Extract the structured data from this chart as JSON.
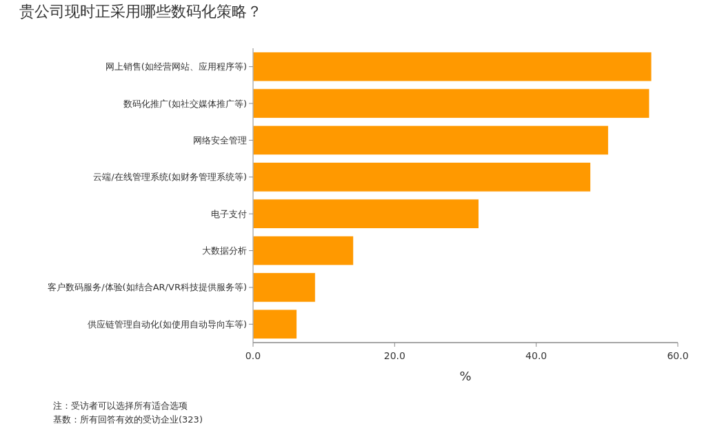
{
  "chart_data": {
    "type": "bar",
    "orientation": "horizontal",
    "title": "贵公司现时正采用哪些数码化策略？",
    "xlabel": "%",
    "categories": [
      "网上销售(如经营网站、应用程序等)",
      "数码化推广(如社交媒体推广等)",
      "网络安全管理",
      "云端/在线管理系统(如财务管理系统等)",
      "电子支付",
      "大数据分析",
      "客户数码服务/体验(如结合AR/VR科技提供服务等)",
      "供应链管理自动化(如使用自动导向车等)"
    ],
    "values": [
      56.3,
      56.0,
      50.2,
      47.7,
      31.9,
      14.2,
      8.8,
      6.2
    ],
    "color": "#ff9900",
    "xlim": [
      0,
      60
    ],
    "xticks": [
      {
        "value": 0,
        "label": "0.0"
      },
      {
        "value": 20,
        "label": "20.0"
      },
      {
        "value": 40,
        "label": "40.0"
      },
      {
        "value": 60,
        "label": "60.0"
      }
    ],
    "grid": false,
    "annotations": [
      "注：受访者可以选择所有适合选项",
      "基数：所有回答有效的受访企业(323)"
    ]
  }
}
